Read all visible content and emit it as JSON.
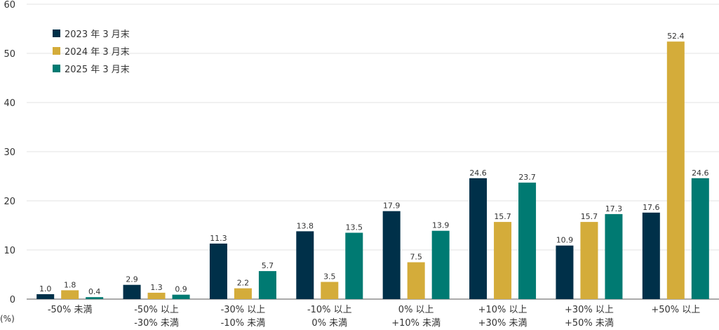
{
  "chart_data": {
    "type": "bar",
    "unit_label": "(%)",
    "ylim": [
      0,
      60
    ],
    "yticks": [
      "0",
      "10",
      "20",
      "30",
      "40",
      "50",
      "60"
    ],
    "grid": true,
    "legend_position": "top-left",
    "categories": [
      [
        "-50% 未満"
      ],
      [
        "-50% 以上",
        "-30% 未満"
      ],
      [
        "-30% 以上",
        "-10% 未満"
      ],
      [
        "-10% 以上",
        "0% 未満"
      ],
      [
        "0% 以上",
        "+10% 未満"
      ],
      [
        "+10% 以上",
        "+30% 未満"
      ],
      [
        "+30% 以上",
        "+50% 未満"
      ],
      [
        "+50% 以上"
      ]
    ],
    "series": [
      {
        "name": "2023 年 3 月末",
        "color": "#003049",
        "values": [
          1.0,
          2.9,
          11.3,
          13.8,
          17.9,
          24.6,
          10.9,
          17.6
        ]
      },
      {
        "name": "2024 年 3 月末",
        "color": "#D4AC3A",
        "values": [
          1.8,
          1.3,
          2.2,
          3.5,
          7.5,
          15.7,
          15.7,
          52.4
        ]
      },
      {
        "name": "2025 年 3 月末",
        "color": "#007A72",
        "values": [
          0.4,
          0.9,
          5.7,
          13.5,
          13.9,
          23.7,
          17.3,
          24.6
        ]
      }
    ]
  }
}
